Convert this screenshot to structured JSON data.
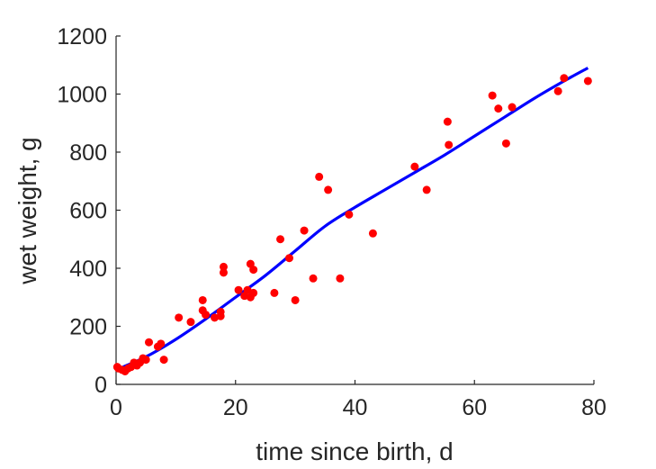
{
  "chart_data": {
    "type": "scatter",
    "title": "",
    "xlabel": "time since birth, d",
    "ylabel": "wet weight, g",
    "xlim": [
      0,
      80
    ],
    "ylim": [
      0,
      1200
    ],
    "xticks": [
      0,
      20,
      40,
      60,
      80
    ],
    "yticks": [
      0,
      200,
      400,
      600,
      800,
      1000,
      1200
    ],
    "grid": false,
    "marker_color": "#ff0000",
    "line_color": "#0000ff",
    "series": [
      {
        "kind": "points",
        "x": [
          0.2,
          0.4,
          1,
          1.5,
          2,
          2.5,
          3,
          3.5,
          4,
          4.5,
          5,
          5.5,
          7,
          7.5,
          8,
          10.5,
          12.5,
          14.5,
          14.5,
          15,
          16.5,
          17.5,
          17.5,
          18,
          18,
          20.5,
          21.5,
          22,
          22.5,
          22.5,
          23,
          23,
          26.5,
          27.5,
          29,
          30,
          31.5,
          33,
          34,
          35.5,
          37.5,
          39,
          43,
          50,
          52,
          55.5,
          55.7,
          63,
          64,
          65.3,
          66.3,
          74,
          75,
          79
        ],
        "y": [
          60,
          55,
          50,
          45,
          55,
          60,
          75,
          65,
          75,
          90,
          85,
          145,
          130,
          140,
          85,
          230,
          215,
          290,
          255,
          240,
          230,
          250,
          235,
          405,
          385,
          325,
          305,
          325,
          300,
          415,
          395,
          315,
          315,
          500,
          435,
          290,
          530,
          365,
          715,
          670,
          365,
          585,
          520,
          750,
          670,
          905,
          825,
          995,
          950,
          830,
          955,
          1010,
          1055,
          1045
        ]
      },
      {
        "kind": "line",
        "x": [
          0,
          5,
          10,
          15,
          20,
          25,
          30,
          35,
          40,
          45,
          50,
          55,
          60,
          65,
          70,
          75,
          79
        ],
        "y": [
          50,
          95,
          155,
          225,
          300,
          375,
          460,
          545,
          610,
          670,
          730,
          790,
          855,
          920,
          985,
          1045,
          1090
        ]
      }
    ]
  }
}
